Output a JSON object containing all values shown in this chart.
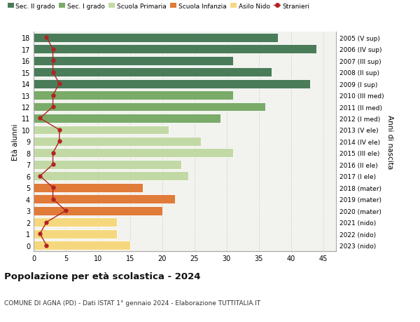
{
  "ages": [
    18,
    17,
    16,
    15,
    14,
    13,
    12,
    11,
    10,
    9,
    8,
    7,
    6,
    5,
    4,
    3,
    2,
    1,
    0
  ],
  "years": [
    "2005 (V sup)",
    "2006 (IV sup)",
    "2007 (III sup)",
    "2008 (II sup)",
    "2009 (I sup)",
    "2010 (III med)",
    "2011 (II med)",
    "2012 (I med)",
    "2013 (V ele)",
    "2014 (IV ele)",
    "2015 (III ele)",
    "2016 (II ele)",
    "2017 (I ele)",
    "2018 (mater)",
    "2019 (mater)",
    "2020 (mater)",
    "2021 (nido)",
    "2022 (nido)",
    "2023 (nido)"
  ],
  "bar_values": [
    38,
    44,
    31,
    37,
    43,
    31,
    36,
    29,
    21,
    26,
    31,
    23,
    24,
    17,
    22,
    20,
    13,
    13,
    15
  ],
  "bar_colors": [
    "#4a7c59",
    "#4a7c59",
    "#4a7c59",
    "#4a7c59",
    "#4a7c59",
    "#7aab68",
    "#7aab68",
    "#7aab68",
    "#c2d9a5",
    "#c2d9a5",
    "#c2d9a5",
    "#c2d9a5",
    "#c2d9a5",
    "#e07b39",
    "#e07b39",
    "#e07b39",
    "#f5d87e",
    "#f5d87e",
    "#f5d87e"
  ],
  "stranieri_values": [
    2,
    3,
    3,
    3,
    4,
    3,
    3,
    1,
    4,
    4,
    3,
    3,
    1,
    3,
    3,
    5,
    2,
    1,
    2
  ],
  "stranieri_color": "#b22222",
  "legend_labels": [
    "Sec. II grado",
    "Sec. I grado",
    "Scuola Primaria",
    "Scuola Infanzia",
    "Asilo Nido",
    "Stranieri"
  ],
  "legend_colors": [
    "#4a7c59",
    "#7aab68",
    "#c2d9a5",
    "#e07b39",
    "#f5d87e",
    "#b22222"
  ],
  "title": "Popolazione per età scolastica - 2024",
  "subtitle": "COMUNE DI AGNA (PD) - Dati ISTAT 1° gennaio 2024 - Elaborazione TUTTITALIA.IT",
  "ylabel": "Età alunni",
  "ylabel2": "Anni di nascita",
  "xlabel_vals": [
    0,
    5,
    10,
    15,
    20,
    25,
    30,
    35,
    40,
    45
  ],
  "xlim": [
    0,
    47
  ],
  "background_color": "#ffffff",
  "plot_bg_color": "#f2f2ee"
}
